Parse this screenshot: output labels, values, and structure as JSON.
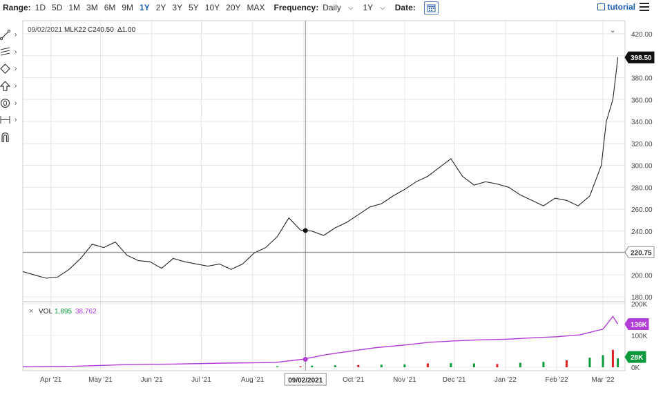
{
  "topbar": {
    "range_label": "Range:",
    "ranges": [
      "1D",
      "5D",
      "1M",
      "3M",
      "6M",
      "9M",
      "1Y",
      "2Y",
      "3Y",
      "5Y",
      "10Y",
      "20Y",
      "MAX"
    ],
    "active_range": "1Y",
    "frequency_label": "Frequency:",
    "frequency_value": "Daily",
    "period_value": "1Y",
    "date_label": "Date:",
    "tutorial_label": "tutorial"
  },
  "tools": [
    "line-tool-icon",
    "fib-tool-icon",
    "shapes-tool-icon",
    "arrow-tool-icon",
    "text-tool-icon",
    "measure-tool-icon",
    "magnet-icon"
  ],
  "chart_data": [
    {
      "type": "line",
      "header": {
        "date": "09/02/2021",
        "symbol": "MLK22",
        "close": "C240.50",
        "change": "Δ1.00"
      },
      "last_value_label": "398.50",
      "crosshair_value_label": "220.75",
      "crosshair_date_label": "09/02/2021",
      "x_tick_labels": [
        "Apr '21",
        "May '21",
        "Jun '21",
        "Jul '21",
        "Aug '21",
        "Sep '21",
        "Oct '21",
        "Nov '21",
        "Dec '21",
        "Jan '22",
        "Feb '22",
        "Mar '22"
      ],
      "y_tick_labels": [
        "420.00",
        "400.00",
        "380.00",
        "360.00",
        "340.00",
        "320.00",
        "300.00",
        "280.00",
        "260.00",
        "240.00",
        "220.00",
        "200.00",
        "180.00"
      ],
      "ylim": [
        180,
        420
      ],
      "x_range": [
        "2021-03-15",
        "2022-03-11"
      ],
      "crosshair_date": "2021-09-02",
      "highlight_point": {
        "x": "2021-09-02",
        "y": 240.5
      },
      "series": [
        {
          "values": [
            [
              "2021-03-15",
              203
            ],
            [
              "2021-03-22",
              200
            ],
            [
              "2021-03-29",
              197
            ],
            [
              "2021-04-05",
              198
            ],
            [
              "2021-04-12",
              205
            ],
            [
              "2021-04-19",
              215
            ],
            [
              "2021-04-26",
              228
            ],
            [
              "2021-05-03",
              225
            ],
            [
              "2021-05-10",
              230
            ],
            [
              "2021-05-17",
              218
            ],
            [
              "2021-05-24",
              213
            ],
            [
              "2021-05-31",
              212
            ],
            [
              "2021-06-07",
              206
            ],
            [
              "2021-06-14",
              215
            ],
            [
              "2021-06-21",
              212
            ],
            [
              "2021-06-28",
              210
            ],
            [
              "2021-07-05",
              208
            ],
            [
              "2021-07-12",
              210
            ],
            [
              "2021-07-19",
              205
            ],
            [
              "2021-07-26",
              210
            ],
            [
              "2021-08-02",
              220
            ],
            [
              "2021-08-09",
              225
            ],
            [
              "2021-08-16",
              235
            ],
            [
              "2021-08-23",
              252
            ],
            [
              "2021-08-30",
              241
            ],
            [
              "2021-09-06",
              240
            ],
            [
              "2021-09-13",
              236
            ],
            [
              "2021-09-20",
              243
            ],
            [
              "2021-09-27",
              248
            ],
            [
              "2021-10-04",
              255
            ],
            [
              "2021-10-11",
              262
            ],
            [
              "2021-10-18",
              265
            ],
            [
              "2021-10-25",
              272
            ],
            [
              "2021-11-01",
              278
            ],
            [
              "2021-11-08",
              285
            ],
            [
              "2021-11-15",
              290
            ],
            [
              "2021-11-22",
              298
            ],
            [
              "2021-11-29",
              306
            ],
            [
              "2021-12-06",
              290
            ],
            [
              "2021-12-13",
              282
            ],
            [
              "2021-12-20",
              285
            ],
            [
              "2021-12-27",
              283
            ],
            [
              "2022-01-03",
              280
            ],
            [
              "2022-01-10",
              273
            ],
            [
              "2022-01-17",
              268
            ],
            [
              "2022-01-24",
              263
            ],
            [
              "2022-01-31",
              270
            ],
            [
              "2022-02-07",
              268
            ],
            [
              "2022-02-14",
              263
            ],
            [
              "2022-02-21",
              272
            ],
            [
              "2022-02-28",
              300
            ],
            [
              "2022-03-03",
              340
            ],
            [
              "2022-03-07",
              360
            ],
            [
              "2022-03-09",
              385
            ],
            [
              "2022-03-10",
              398.5
            ]
          ]
        }
      ]
    },
    {
      "type": "bar",
      "label": "VOL",
      "value_green": "1,895",
      "value_magenta": "38,762",
      "y_tick_labels": [
        "200K",
        "100K",
        "0K"
      ],
      "ylim": [
        0,
        200000
      ],
      "last_volume_label": "28K",
      "last_oi_label": "136K",
      "oi_series": [
        [
          "2021-03-15",
          1500
        ],
        [
          "2021-04-15",
          3000
        ],
        [
          "2021-05-15",
          8000
        ],
        [
          "2021-06-15",
          10000
        ],
        [
          "2021-07-15",
          13000
        ],
        [
          "2021-08-15",
          15000
        ],
        [
          "2021-08-31",
          25000
        ],
        [
          "2021-09-15",
          40000
        ],
        [
          "2021-10-01",
          52000
        ],
        [
          "2021-10-15",
          62000
        ],
        [
          "2021-11-01",
          70000
        ],
        [
          "2021-11-15",
          78000
        ],
        [
          "2021-12-01",
          83000
        ],
        [
          "2021-12-15",
          86000
        ],
        [
          "2022-01-01",
          88000
        ],
        [
          "2022-01-15",
          92000
        ],
        [
          "2022-02-01",
          96000
        ],
        [
          "2022-02-15",
          102000
        ],
        [
          "2022-03-01",
          120000
        ],
        [
          "2022-03-07",
          160000
        ],
        [
          "2022-03-10",
          136000
        ]
      ],
      "volume_bars": [
        [
          "2021-08-16",
          3000
        ],
        [
          "2021-08-30",
          3000
        ],
        [
          "2021-09-06",
          5000
        ],
        [
          "2021-09-20",
          6000
        ],
        [
          "2021-10-04",
          7000
        ],
        [
          "2021-10-18",
          8000
        ],
        [
          "2021-11-01",
          9000
        ],
        [
          "2021-11-15",
          12000
        ],
        [
          "2021-11-29",
          13000
        ],
        [
          "2021-12-13",
          12000
        ],
        [
          "2021-12-27",
          10000
        ],
        [
          "2022-01-10",
          14000
        ],
        [
          "2022-01-24",
          17000
        ],
        [
          "2022-02-07",
          22000
        ],
        [
          "2022-02-21",
          30000
        ],
        [
          "2022-03-01",
          38000
        ],
        [
          "2022-03-07",
          55000
        ],
        [
          "2022-03-10",
          28000
        ]
      ],
      "colors": {
        "up": "#0a9a3c",
        "down": "#e02020",
        "oi": "#b13cd6"
      }
    }
  ]
}
